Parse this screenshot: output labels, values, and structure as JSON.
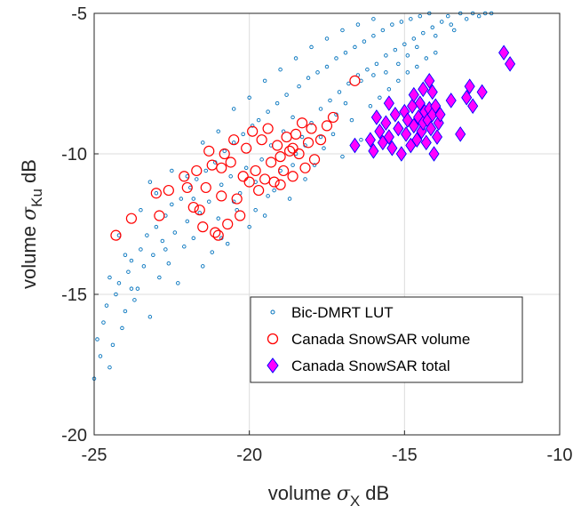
{
  "chart_data": {
    "type": "scatter",
    "xlabel": {
      "prefix": "volume ",
      "symbol": "σ",
      "sub": "X",
      "suffix": " dB"
    },
    "ylabel": {
      "prefix": "volume ",
      "symbol": "σ",
      "sub": "Ku",
      "suffix": " dB"
    },
    "xlim": [
      -25,
      -10
    ],
    "ylim": [
      -20,
      -5
    ],
    "xticks": [
      -25,
      -20,
      -15,
      -10
    ],
    "yticks": [
      -20,
      -15,
      -10,
      -5
    ],
    "xtick_labels": [
      "-25",
      "-20",
      "-15",
      "-10"
    ],
    "ytick_labels": [
      "-20",
      "-15",
      "-10",
      "-5"
    ],
    "grid": true,
    "legend_position": "bottom-right",
    "colors": {
      "lut": "#0072BD",
      "volume": "#FF0000",
      "total_face": "#FF00FF",
      "total_edge": "#0000FF"
    },
    "series": [
      {
        "name": "Bic-DMRT LUT",
        "marker": "small-circle",
        "note_points": "dense cloud; representative sample listed",
        "points": [
          [
            -25.0,
            -18.0
          ],
          [
            -24.9,
            -16.6
          ],
          [
            -24.8,
            -17.2
          ],
          [
            -24.7,
            -16.0
          ],
          [
            -24.6,
            -15.4
          ],
          [
            -24.5,
            -17.6
          ],
          [
            -24.4,
            -16.8
          ],
          [
            -24.3,
            -15.0
          ],
          [
            -24.2,
            -14.6
          ],
          [
            -24.1,
            -16.2
          ],
          [
            -24.0,
            -15.6
          ],
          [
            -23.9,
            -14.2
          ],
          [
            -23.8,
            -13.8
          ],
          [
            -23.7,
            -15.2
          ],
          [
            -23.6,
            -14.8
          ],
          [
            -23.5,
            -13.4
          ],
          [
            -23.4,
            -14.0
          ],
          [
            -23.3,
            -12.9
          ],
          [
            -23.2,
            -15.8
          ],
          [
            -23.1,
            -13.6
          ],
          [
            -23.0,
            -12.6
          ],
          [
            -22.9,
            -14.4
          ],
          [
            -22.8,
            -13.1
          ],
          [
            -22.7,
            -12.2
          ],
          [
            -22.6,
            -13.9
          ],
          [
            -22.5,
            -11.8
          ],
          [
            -22.4,
            -12.8
          ],
          [
            -22.3,
            -14.6
          ],
          [
            -22.2,
            -11.6
          ],
          [
            -22.1,
            -13.3
          ],
          [
            -22.0,
            -12.4
          ],
          [
            -21.9,
            -11.2
          ],
          [
            -21.8,
            -13.0
          ],
          [
            -21.7,
            -10.9
          ],
          [
            -21.6,
            -12.1
          ],
          [
            -21.5,
            -14.0
          ],
          [
            -21.4,
            -10.6
          ],
          [
            -21.3,
            -11.7
          ],
          [
            -21.2,
            -13.5
          ],
          [
            -21.1,
            -10.3
          ],
          [
            -21.0,
            -12.3
          ],
          [
            -20.9,
            -11.1
          ],
          [
            -20.8,
            -9.9
          ],
          [
            -20.7,
            -13.2
          ],
          [
            -20.6,
            -10.8
          ],
          [
            -20.5,
            -9.6
          ],
          [
            -20.4,
            -12.0
          ],
          [
            -20.3,
            -11.4
          ],
          [
            -20.2,
            -9.3
          ],
          [
            -20.1,
            -10.5
          ],
          [
            -20.0,
            -12.6
          ],
          [
            -19.9,
            -9.0
          ],
          [
            -19.8,
            -11.0
          ],
          [
            -19.7,
            -8.8
          ],
          [
            -19.6,
            -10.2
          ],
          [
            -19.5,
            -12.2
          ],
          [
            -19.4,
            -8.5
          ],
          [
            -19.3,
            -9.7
          ],
          [
            -19.2,
            -11.3
          ],
          [
            -19.1,
            -8.2
          ],
          [
            -19.0,
            -10.6
          ],
          [
            -18.9,
            -9.2
          ],
          [
            -18.8,
            -7.9
          ],
          [
            -18.7,
            -11.6
          ],
          [
            -18.6,
            -8.7
          ],
          [
            -18.5,
            -10.0
          ],
          [
            -18.4,
            -7.6
          ],
          [
            -18.3,
            -9.4
          ],
          [
            -18.2,
            -10.9
          ],
          [
            -18.1,
            -7.3
          ],
          [
            -18.0,
            -8.9
          ],
          [
            -17.9,
            -10.4
          ],
          [
            -17.8,
            -7.1
          ],
          [
            -17.7,
            -8.4
          ],
          [
            -17.6,
            -9.8
          ],
          [
            -17.5,
            -6.9
          ],
          [
            -17.4,
            -8.1
          ],
          [
            -17.3,
            -9.3
          ],
          [
            -17.2,
            -6.6
          ],
          [
            -17.1,
            -7.8
          ],
          [
            -17.0,
            -10.1
          ],
          [
            -16.9,
            -6.4
          ],
          [
            -16.8,
            -7.5
          ],
          [
            -16.7,
            -8.8
          ],
          [
            -16.6,
            -6.2
          ],
          [
            -16.5,
            -7.2
          ],
          [
            -16.4,
            -9.5
          ],
          [
            -16.3,
            -6.0
          ],
          [
            -16.2,
            -7.0
          ],
          [
            -16.1,
            -8.3
          ],
          [
            -16.0,
            -5.8
          ],
          [
            -15.9,
            -6.8
          ],
          [
            -15.8,
            -8.0
          ],
          [
            -15.7,
            -5.6
          ],
          [
            -15.6,
            -6.5
          ],
          [
            -15.5,
            -7.7
          ],
          [
            -15.4,
            -5.4
          ],
          [
            -15.3,
            -6.3
          ],
          [
            -15.2,
            -7.4
          ],
          [
            -15.1,
            -5.3
          ],
          [
            -15.0,
            -6.1
          ],
          [
            -14.9,
            -7.1
          ],
          [
            -14.8,
            -5.2
          ],
          [
            -14.7,
            -5.9
          ],
          [
            -14.6,
            -6.9
          ],
          [
            -14.5,
            -5.1
          ],
          [
            -14.4,
            -5.7
          ],
          [
            -14.3,
            -6.6
          ],
          [
            -14.2,
            -5.0
          ],
          [
            -14.1,
            -5.5
          ],
          [
            -14.0,
            -6.4
          ],
          [
            -13.8,
            -5.3
          ],
          [
            -13.6,
            -5.1
          ],
          [
            -13.4,
            -5.6
          ],
          [
            -13.2,
            -5.0
          ],
          [
            -13.0,
            -5.2
          ],
          [
            -12.8,
            -5.0
          ],
          [
            -12.6,
            -5.1
          ],
          [
            -12.4,
            -5.0
          ],
          [
            -12.2,
            -5.0
          ],
          [
            -22.0,
            -10.8
          ],
          [
            -21.5,
            -9.6
          ],
          [
            -21.0,
            -9.2
          ],
          [
            -20.5,
            -8.4
          ],
          [
            -20.0,
            -8.0
          ],
          [
            -19.5,
            -7.4
          ],
          [
            -19.0,
            -7.0
          ],
          [
            -18.5,
            -6.6
          ],
          [
            -18.0,
            -6.2
          ],
          [
            -17.5,
            -5.9
          ],
          [
            -17.0,
            -5.6
          ],
          [
            -16.5,
            -5.4
          ],
          [
            -16.0,
            -5.2
          ],
          [
            -23.5,
            -12.0
          ],
          [
            -23.0,
            -11.4
          ],
          [
            -22.5,
            -10.6
          ],
          [
            -24.5,
            -14.4
          ],
          [
            -24.0,
            -13.6
          ],
          [
            -24.2,
            -12.9
          ],
          [
            -23.2,
            -11.0
          ],
          [
            -20.5,
            -11.7
          ],
          [
            -19.8,
            -12.0
          ],
          [
            -18.6,
            -10.4
          ],
          [
            -17.7,
            -9.4
          ],
          [
            -16.9,
            -8.2
          ],
          [
            -16.0,
            -7.2
          ],
          [
            -15.2,
            -6.8
          ],
          [
            -14.6,
            -6.2
          ],
          [
            -14.0,
            -5.8
          ],
          [
            -13.5,
            -5.4
          ],
          [
            -21.8,
            -11.6
          ],
          [
            -22.7,
            -13.4
          ],
          [
            -23.8,
            -14.8
          ],
          [
            -20.9,
            -13.0
          ],
          [
            -19.4,
            -11.5
          ],
          [
            -18.2,
            -9.7
          ],
          [
            -17.2,
            -8.6
          ],
          [
            -16.4,
            -7.4
          ],
          [
            -15.6,
            -7.1
          ],
          [
            -14.9,
            -6.5
          ]
        ]
      },
      {
        "name": "Canada SnowSAR volume",
        "marker": "open-circle",
        "points": [
          [
            -24.3,
            -12.9
          ],
          [
            -23.8,
            -12.3
          ],
          [
            -23.0,
            -11.4
          ],
          [
            -22.9,
            -12.2
          ],
          [
            -22.6,
            -11.3
          ],
          [
            -22.1,
            -10.8
          ],
          [
            -22.0,
            -11.2
          ],
          [
            -21.8,
            -11.9
          ],
          [
            -21.6,
            -12.0
          ],
          [
            -21.5,
            -12.6
          ],
          [
            -21.4,
            -11.2
          ],
          [
            -21.3,
            -9.9
          ],
          [
            -21.2,
            -10.4
          ],
          [
            -21.1,
            -12.8
          ],
          [
            -21.0,
            -12.9
          ],
          [
            -20.9,
            -11.5
          ],
          [
            -20.8,
            -10.0
          ],
          [
            -20.7,
            -12.5
          ],
          [
            -20.6,
            -10.3
          ],
          [
            -20.5,
            -9.5
          ],
          [
            -20.4,
            -11.6
          ],
          [
            -20.3,
            -12.2
          ],
          [
            -20.2,
            -10.8
          ],
          [
            -20.1,
            -9.8
          ],
          [
            -20.0,
            -11.0
          ],
          [
            -19.9,
            -9.2
          ],
          [
            -19.8,
            -10.6
          ],
          [
            -19.7,
            -11.3
          ],
          [
            -19.6,
            -9.5
          ],
          [
            -19.5,
            -10.9
          ],
          [
            -19.4,
            -9.1
          ],
          [
            -19.3,
            -10.3
          ],
          [
            -19.2,
            -11.0
          ],
          [
            -19.1,
            -9.7
          ],
          [
            -19.0,
            -10.1
          ],
          [
            -18.9,
            -10.6
          ],
          [
            -18.8,
            -9.4
          ],
          [
            -18.7,
            -9.9
          ],
          [
            -18.6,
            -10.8
          ],
          [
            -18.5,
            -9.3
          ],
          [
            -18.4,
            -10.0
          ],
          [
            -18.3,
            -8.9
          ],
          [
            -18.2,
            -10.5
          ],
          [
            -18.1,
            -9.6
          ],
          [
            -18.0,
            -9.1
          ],
          [
            -17.9,
            -10.2
          ],
          [
            -17.7,
            -9.5
          ],
          [
            -17.5,
            -9.0
          ],
          [
            -17.3,
            -8.7
          ],
          [
            -16.6,
            -7.4
          ],
          [
            -20.9,
            -10.5
          ],
          [
            -21.7,
            -10.6
          ],
          [
            -19.0,
            -11.1
          ],
          [
            -18.6,
            -9.8
          ]
        ]
      },
      {
        "name": "Canada SnowSAR total",
        "marker": "diamond",
        "points": [
          [
            -16.6,
            -9.7
          ],
          [
            -16.1,
            -9.5
          ],
          [
            -16.0,
            -9.9
          ],
          [
            -15.9,
            -8.7
          ],
          [
            -15.8,
            -9.2
          ],
          [
            -15.7,
            -9.6
          ],
          [
            -15.6,
            -8.9
          ],
          [
            -15.5,
            -9.4
          ],
          [
            -15.4,
            -9.8
          ],
          [
            -15.3,
            -8.6
          ],
          [
            -15.2,
            -9.1
          ],
          [
            -15.1,
            -10.0
          ],
          [
            -15.0,
            -8.5
          ],
          [
            -14.95,
            -9.3
          ],
          [
            -14.9,
            -8.8
          ],
          [
            -14.8,
            -9.7
          ],
          [
            -14.75,
            -8.3
          ],
          [
            -14.7,
            -9.0
          ],
          [
            -14.6,
            -9.5
          ],
          [
            -14.55,
            -8.7
          ],
          [
            -14.5,
            -8.2
          ],
          [
            -14.45,
            -9.2
          ],
          [
            -14.4,
            -8.9
          ],
          [
            -14.35,
            -8.5
          ],
          [
            -14.3,
            -9.6
          ],
          [
            -14.25,
            -8.8
          ],
          [
            -14.2,
            -8.4
          ],
          [
            -14.15,
            -9.1
          ],
          [
            -14.1,
            -8.6
          ],
          [
            -14.05,
            -10.0
          ],
          [
            -14.0,
            -8.3
          ],
          [
            -13.95,
            -9.4
          ],
          [
            -13.9,
            -8.9
          ],
          [
            -13.85,
            -8.6
          ],
          [
            -14.7,
            -7.9
          ],
          [
            -14.4,
            -7.7
          ],
          [
            -14.1,
            -7.8
          ],
          [
            -13.5,
            -8.1
          ],
          [
            -13.2,
            -9.3
          ],
          [
            -13.0,
            -8.0
          ],
          [
            -12.8,
            -8.3
          ],
          [
            -12.5,
            -7.8
          ],
          [
            -12.9,
            -7.6
          ],
          [
            -11.8,
            -6.4
          ],
          [
            -11.6,
            -6.8
          ],
          [
            -15.5,
            -8.2
          ],
          [
            -14.2,
            -7.4
          ]
        ]
      }
    ]
  }
}
